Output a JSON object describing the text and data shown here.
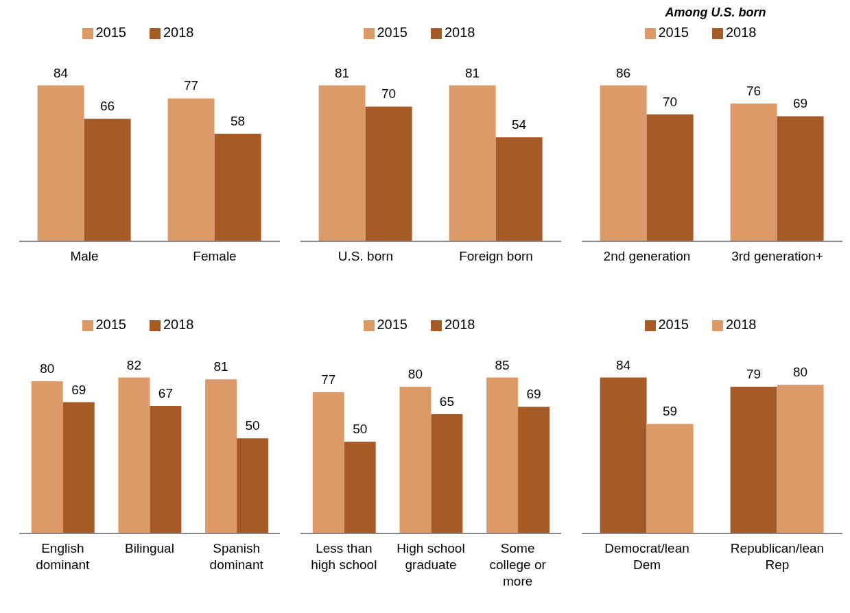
{
  "chart_data": [
    {
      "type": "bar",
      "categories": [
        "Male",
        "Female"
      ],
      "series": [
        {
          "name": "2015",
          "color": "#dd9a69",
          "values": [
            84,
            77
          ]
        },
        {
          "name": "2018",
          "color": "#a65a26",
          "values": [
            66,
            58
          ]
        }
      ],
      "data_labels": true,
      "legend": "top",
      "grid": false
    },
    {
      "type": "bar",
      "categories": [
        "U.S. born",
        "Foreign born"
      ],
      "series": [
        {
          "name": "2015",
          "color": "#dd9a69",
          "values": [
            81,
            81
          ]
        },
        {
          "name": "2018",
          "color": "#a65a26",
          "values": [
            70,
            54
          ]
        }
      ],
      "data_labels": true,
      "legend": "top",
      "grid": false
    },
    {
      "type": "bar",
      "title": "Among U.S. born",
      "categories": [
        "2nd generation",
        "3rd generation+"
      ],
      "series": [
        {
          "name": "2015",
          "color": "#dd9a69",
          "values": [
            86,
            76
          ]
        },
        {
          "name": "2018",
          "color": "#a65a26",
          "values": [
            70,
            69
          ]
        }
      ],
      "data_labels": true,
      "legend": "top",
      "grid": false
    },
    {
      "type": "bar",
      "categories": [
        "English dominant",
        "Bilingual",
        "Spanish dominant"
      ],
      "series": [
        {
          "name": "2015",
          "color": "#dd9a69",
          "values": [
            80,
            82,
            81
          ]
        },
        {
          "name": "2018",
          "color": "#a65a26",
          "values": [
            69,
            67,
            50
          ]
        }
      ],
      "data_labels": true,
      "legend": "top",
      "grid": false
    },
    {
      "type": "bar",
      "categories": [
        "Less than high school",
        "High school graduate",
        "Some college or more"
      ],
      "series": [
        {
          "name": "2015",
          "color": "#dd9a69",
          "values": [
            77,
            80,
            85
          ]
        },
        {
          "name": "2018",
          "color": "#a65a26",
          "values": [
            50,
            65,
            69
          ]
        }
      ],
      "data_labels": true,
      "legend": "top",
      "grid": false
    },
    {
      "type": "bar",
      "categories": [
        "Democrat/lean Dem",
        "Republican/lean Rep"
      ],
      "series": [
        {
          "name": "2015",
          "color": "#a65a26",
          "values": [
            84,
            79
          ]
        },
        {
          "name": "2018",
          "color": "#dd9a69",
          "values": [
            59,
            80
          ]
        }
      ],
      "data_labels": true,
      "legend": "top",
      "grid": false
    }
  ]
}
